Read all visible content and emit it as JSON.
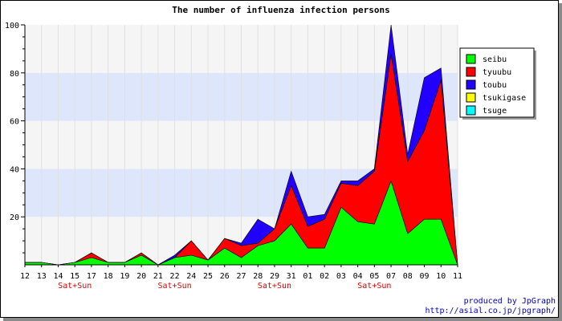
{
  "chart_data": {
    "type": "area",
    "stacked": true,
    "title": "The number of influenza infection persons",
    "x": [
      "12",
      "13",
      "14",
      "15",
      "17",
      "18",
      "19",
      "20",
      "21",
      "22",
      "24",
      "25",
      "26",
      "27",
      "28",
      "29",
      "31",
      "01",
      "02",
      "03",
      "04",
      "05",
      "07",
      "08",
      "09",
      "10",
      "11"
    ],
    "weekend_labels": [
      {
        "index": 3,
        "label": "Sat+Sun"
      },
      {
        "index": 9,
        "label": "Sat+Sun"
      },
      {
        "index": 15,
        "label": "Sat+Sun"
      },
      {
        "index": 21,
        "label": "Sat+Sun"
      }
    ],
    "ylim": [
      0,
      100
    ],
    "yticks": [
      20,
      40,
      60,
      80,
      100
    ],
    "series": [
      {
        "name": "seibu",
        "color": "#00ff00",
        "values": [
          1,
          1,
          0,
          1,
          3,
          1,
          1,
          4,
          0,
          3,
          4,
          2,
          7,
          3,
          8,
          10,
          17,
          7,
          7,
          24,
          18,
          17,
          35,
          13,
          19,
          19,
          0
        ]
      },
      {
        "name": "tyuubu",
        "color": "#ff0000",
        "values": [
          0,
          0,
          0,
          0,
          2,
          0,
          0,
          1,
          0,
          0,
          6,
          0,
          4,
          5,
          1,
          5,
          16,
          9,
          12,
          10,
          15,
          22,
          53,
          30,
          37,
          58,
          0
        ]
      },
      {
        "name": "toubu",
        "color": "#2200ff",
        "values": [
          0,
          0,
          0,
          0,
          0,
          0,
          0,
          0,
          0,
          1,
          0,
          0,
          0,
          1,
          10,
          0,
          6,
          4,
          2,
          1,
          2,
          1,
          12,
          3,
          22,
          5,
          0
        ]
      },
      {
        "name": "tsukigase",
        "color": "#ffff00",
        "values": [
          0,
          0,
          0,
          0,
          0,
          0,
          0,
          0,
          0,
          0,
          0,
          0,
          0,
          0,
          0,
          0,
          0,
          0,
          0,
          0,
          0,
          0,
          0,
          0,
          0,
          0,
          0
        ]
      },
      {
        "name": "tsuge",
        "color": "#00ffff",
        "values": [
          0,
          0,
          0,
          0,
          0,
          0,
          0,
          0,
          0,
          0,
          0,
          0,
          0,
          0,
          0,
          0,
          0,
          0,
          0,
          0,
          0,
          0,
          0,
          0,
          0,
          0,
          0
        ]
      }
    ],
    "grid": true,
    "band_colors": [
      "#f5f5f5",
      "#dde6fb"
    ],
    "legend_position": "right"
  },
  "credit": {
    "line1": "produced by JpGraph",
    "line2": "http://asial.co.jp/jpgraph/"
  }
}
